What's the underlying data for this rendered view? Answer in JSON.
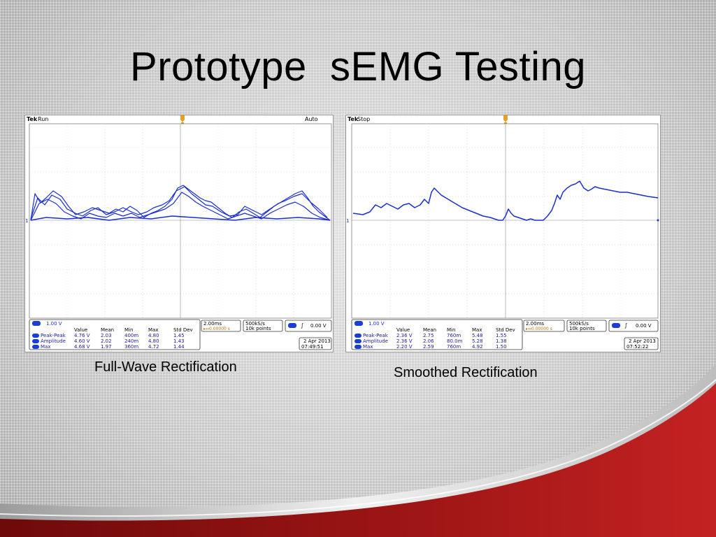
{
  "slide": {
    "title": "Prototype  sEMG Testing"
  },
  "scopes": [
    {
      "brand": "Tek",
      "status": "Run",
      "trigger_mode": "Auto",
      "channel_scale": "1.00 V",
      "timebase": "2.00ms",
      "trigger_pos": "▸↔0.00000 s",
      "sample_rate": "500kS/s",
      "record_length": "10k points",
      "trigger_level": "0.00 V",
      "date": "2 Apr 2013",
      "time": "07:49:51",
      "headers": [
        "Value",
        "Mean",
        "Min",
        "Max",
        "Std Dev"
      ],
      "rows": [
        {
          "label": "Peak-Peak",
          "value": "4.76 V",
          "mean": "2.03",
          "min": "400m",
          "max": "4.80",
          "std": "1.45"
        },
        {
          "label": "Amplitude",
          "value": "4.60 V",
          "mean": "2.02",
          "min": "240m",
          "max": "4.80",
          "std": "1.43"
        },
        {
          "label": "Max",
          "value": "4.68 V",
          "mean": "1.97",
          "min": "360m",
          "max": "4.72",
          "std": "1.44"
        }
      ],
      "caption": "Full-Wave Rectification"
    },
    {
      "brand": "Tek",
      "status": "Stop",
      "trigger_mode": "",
      "channel_scale": "1.00 V",
      "timebase": "2.00ms",
      "trigger_pos": "▸↔0.00000 s",
      "sample_rate": "500kS/s",
      "record_length": "10k points",
      "trigger_level": "0.00 V",
      "date": "2 Apr 2013",
      "time": "07:52:22",
      "headers": [
        "Value",
        "Mean",
        "Min",
        "Max",
        "Std Dev"
      ],
      "rows": [
        {
          "label": "Peak-Peak",
          "value": "2.36 V",
          "mean": "2.75",
          "min": "760m",
          "max": "5.48",
          "std": "1.55"
        },
        {
          "label": "Amplitude",
          "value": "2.36 V",
          "mean": "2.06",
          "min": "80.0m",
          "max": "5.28",
          "std": "1.38"
        },
        {
          "label": "Max",
          "value": "2.20 V",
          "mean": "2.59",
          "min": "760m",
          "max": "4.92",
          "std": "1.50"
        }
      ],
      "caption": "Smoothed Rectification"
    }
  ],
  "colors": {
    "trace": "#1a2fd0",
    "trigger_marker": "#e8a020",
    "accent_red": "#a01818"
  }
}
